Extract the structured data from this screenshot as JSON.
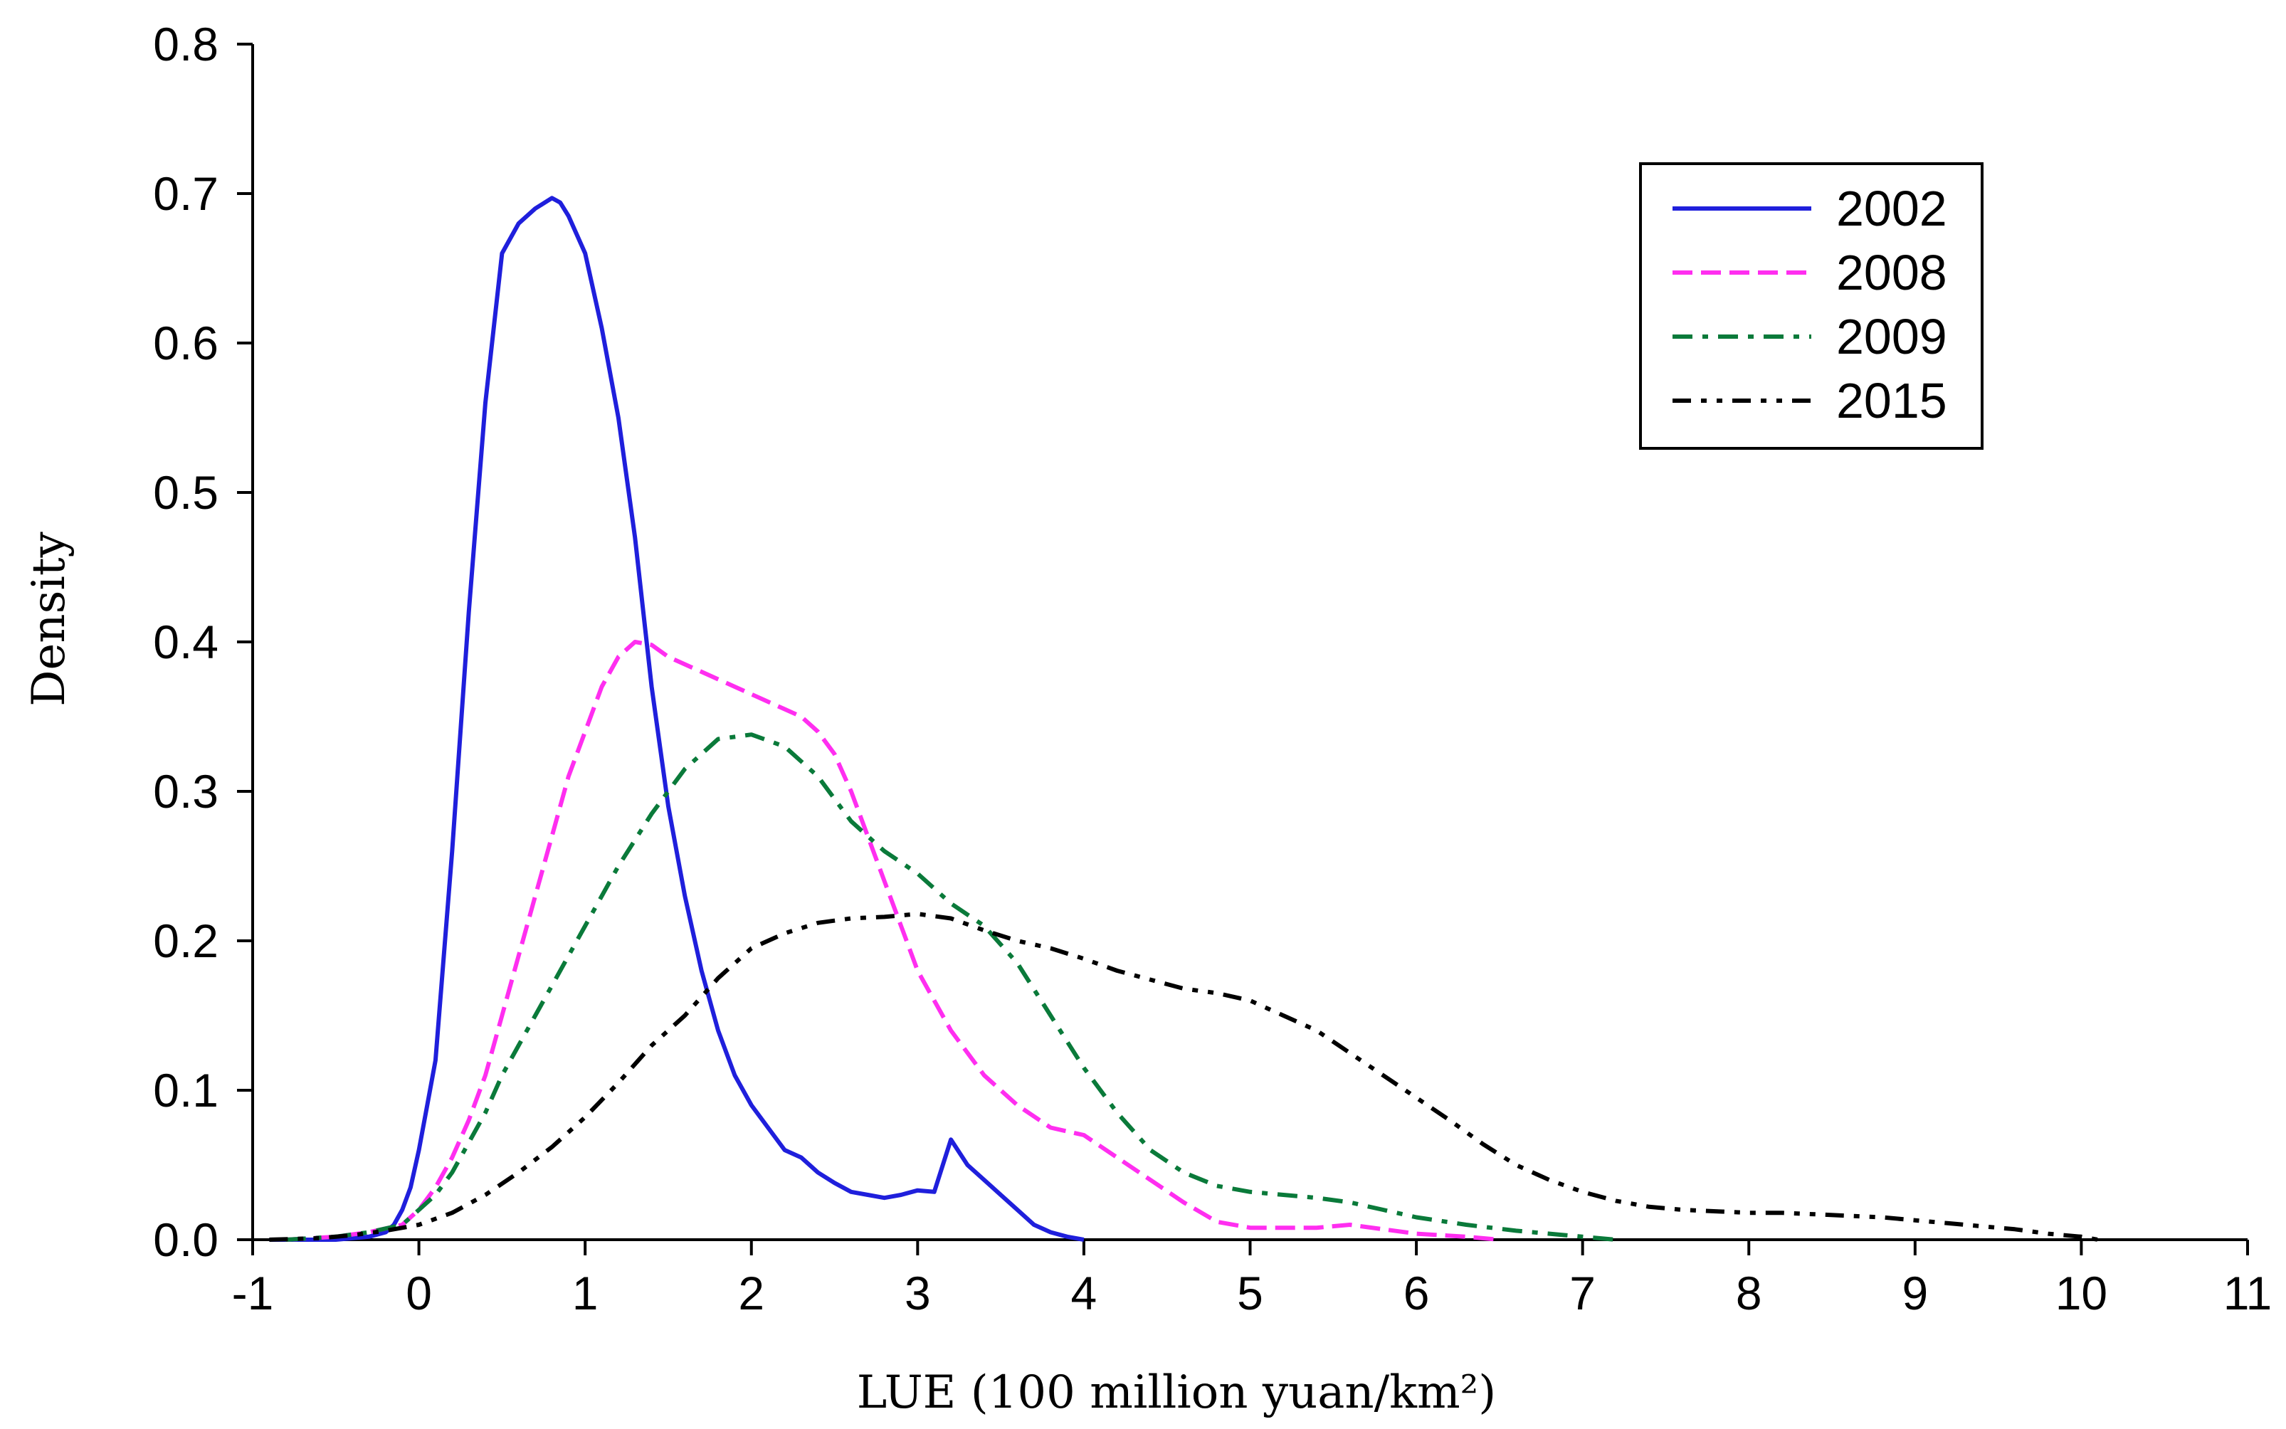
{
  "chart_data": {
    "type": "line",
    "title": "",
    "xlabel": "LUE (100 million yuan/km²)",
    "ylabel": "Density",
    "xlim": [
      -1,
      11
    ],
    "ylim": [
      0,
      0.8
    ],
    "xticks": [
      -1,
      0,
      1,
      2,
      3,
      4,
      5,
      6,
      7,
      8,
      9,
      10,
      11
    ],
    "xtick_labels": [
      "-1",
      "0",
      "1",
      "2",
      "3",
      "4",
      "5",
      "6",
      "7",
      "8",
      "9",
      "10",
      "11"
    ],
    "yticks": [
      0,
      0.1,
      0.2,
      0.3,
      0.4,
      0.5,
      0.6,
      0.7,
      0.8
    ],
    "ytick_labels": [
      "0.0",
      "0.1",
      "0.2",
      "0.3",
      "0.4",
      "0.5",
      "0.6",
      "0.7",
      "0.8"
    ],
    "grid": false,
    "legend_position": "top-right",
    "series": [
      {
        "name": "2002",
        "color": "#1f1fdc",
        "style": "solid",
        "x": [
          -0.9,
          -0.5,
          -0.3,
          -0.2,
          -0.15,
          -0.1,
          -0.05,
          0,
          0.05,
          0.1,
          0.2,
          0.3,
          0.4,
          0.5,
          0.6,
          0.7,
          0.8,
          0.85,
          0.9,
          1.0,
          1.1,
          1.2,
          1.3,
          1.4,
          1.5,
          1.6,
          1.7,
          1.8,
          1.9,
          2.0,
          2.1,
          2.2,
          2.3,
          2.4,
          2.5,
          2.6,
          2.7,
          2.8,
          2.9,
          3.0,
          3.1,
          3.2,
          3.3,
          3.4,
          3.5,
          3.6,
          3.7,
          3.8,
          3.9,
          4.0
        ],
        "y": [
          0.0,
          0.0,
          0.002,
          0.005,
          0.01,
          0.02,
          0.035,
          0.06,
          0.09,
          0.12,
          0.26,
          0.42,
          0.56,
          0.66,
          0.68,
          0.69,
          0.697,
          0.694,
          0.685,
          0.66,
          0.61,
          0.55,
          0.47,
          0.37,
          0.29,
          0.23,
          0.18,
          0.14,
          0.11,
          0.09,
          0.075,
          0.06,
          0.055,
          0.045,
          0.038,
          0.032,
          0.03,
          0.028,
          0.03,
          0.033,
          0.032,
          0.067,
          0.05,
          0.04,
          0.03,
          0.02,
          0.01,
          0.005,
          0.002,
          0.0
        ]
      },
      {
        "name": "2008",
        "color": "#ff2ef0",
        "style": "dashed",
        "x": [
          -0.8,
          -0.5,
          -0.3,
          -0.1,
          0,
          0.1,
          0.2,
          0.3,
          0.4,
          0.5,
          0.6,
          0.7,
          0.8,
          0.9,
          1.0,
          1.1,
          1.2,
          1.3,
          1.4,
          1.5,
          1.6,
          1.7,
          1.8,
          1.9,
          2.0,
          2.1,
          2.2,
          2.3,
          2.4,
          2.5,
          2.6,
          2.7,
          2.8,
          2.9,
          3.0,
          3.2,
          3.4,
          3.6,
          3.8,
          4.0,
          4.2,
          4.4,
          4.6,
          4.8,
          5.0,
          5.2,
          5.4,
          5.6,
          5.8,
          6.0,
          6.3,
          6.5
        ],
        "y": [
          0.0,
          0.002,
          0.005,
          0.01,
          0.02,
          0.035,
          0.055,
          0.08,
          0.11,
          0.15,
          0.19,
          0.23,
          0.27,
          0.31,
          0.34,
          0.37,
          0.39,
          0.4,
          0.398,
          0.39,
          0.385,
          0.38,
          0.375,
          0.37,
          0.365,
          0.36,
          0.355,
          0.35,
          0.34,
          0.325,
          0.3,
          0.27,
          0.24,
          0.21,
          0.18,
          0.14,
          0.11,
          0.09,
          0.075,
          0.07,
          0.055,
          0.04,
          0.025,
          0.012,
          0.008,
          0.008,
          0.008,
          0.01,
          0.007,
          0.004,
          0.002,
          0.0
        ]
      },
      {
        "name": "2009",
        "color": "#0a7a3a",
        "style": "dashdot",
        "x": [
          -0.8,
          -0.5,
          -0.3,
          -0.1,
          0,
          0.1,
          0.2,
          0.3,
          0.4,
          0.5,
          0.6,
          0.7,
          0.8,
          0.9,
          1.0,
          1.2,
          1.4,
          1.6,
          1.8,
          2.0,
          2.2,
          2.4,
          2.6,
          2.8,
          3.0,
          3.2,
          3.4,
          3.6,
          3.8,
          4.0,
          4.2,
          4.4,
          4.6,
          4.8,
          5.0,
          5.2,
          5.4,
          5.6,
          5.8,
          6.0,
          6.3,
          6.6,
          6.9,
          7.2
        ],
        "y": [
          0.0,
          0.002,
          0.005,
          0.01,
          0.02,
          0.03,
          0.045,
          0.065,
          0.085,
          0.11,
          0.13,
          0.15,
          0.17,
          0.19,
          0.21,
          0.25,
          0.285,
          0.315,
          0.335,
          0.338,
          0.33,
          0.31,
          0.28,
          0.26,
          0.245,
          0.225,
          0.21,
          0.185,
          0.15,
          0.115,
          0.085,
          0.06,
          0.045,
          0.036,
          0.032,
          0.03,
          0.028,
          0.025,
          0.02,
          0.015,
          0.01,
          0.006,
          0.003,
          0.0
        ]
      },
      {
        "name": "2015",
        "color": "#000000",
        "style": "dashdotdot",
        "x": [
          -0.9,
          -0.6,
          -0.4,
          -0.2,
          0,
          0.2,
          0.4,
          0.6,
          0.8,
          1.0,
          1.2,
          1.4,
          1.6,
          1.8,
          2.0,
          2.2,
          2.4,
          2.6,
          2.8,
          3.0,
          3.2,
          3.4,
          3.6,
          3.8,
          4.0,
          4.2,
          4.4,
          4.6,
          4.8,
          5.0,
          5.2,
          5.4,
          5.6,
          5.8,
          6.0,
          6.2,
          6.4,
          6.6,
          6.8,
          7.0,
          7.2,
          7.4,
          7.6,
          7.8,
          8.0,
          8.2,
          8.4,
          8.6,
          8.8,
          9.0,
          9.2,
          9.4,
          9.6,
          9.8,
          10.0,
          10.1
        ],
        "y": [
          0.0,
          0.001,
          0.003,
          0.006,
          0.01,
          0.018,
          0.03,
          0.045,
          0.062,
          0.082,
          0.105,
          0.13,
          0.15,
          0.175,
          0.195,
          0.205,
          0.212,
          0.215,
          0.216,
          0.218,
          0.215,
          0.207,
          0.2,
          0.195,
          0.188,
          0.18,
          0.174,
          0.168,
          0.165,
          0.16,
          0.15,
          0.14,
          0.125,
          0.11,
          0.095,
          0.08,
          0.064,
          0.05,
          0.04,
          0.032,
          0.026,
          0.022,
          0.02,
          0.019,
          0.018,
          0.018,
          0.017,
          0.016,
          0.015,
          0.013,
          0.011,
          0.009,
          0.007,
          0.004,
          0.002,
          0.0
        ]
      }
    ]
  }
}
